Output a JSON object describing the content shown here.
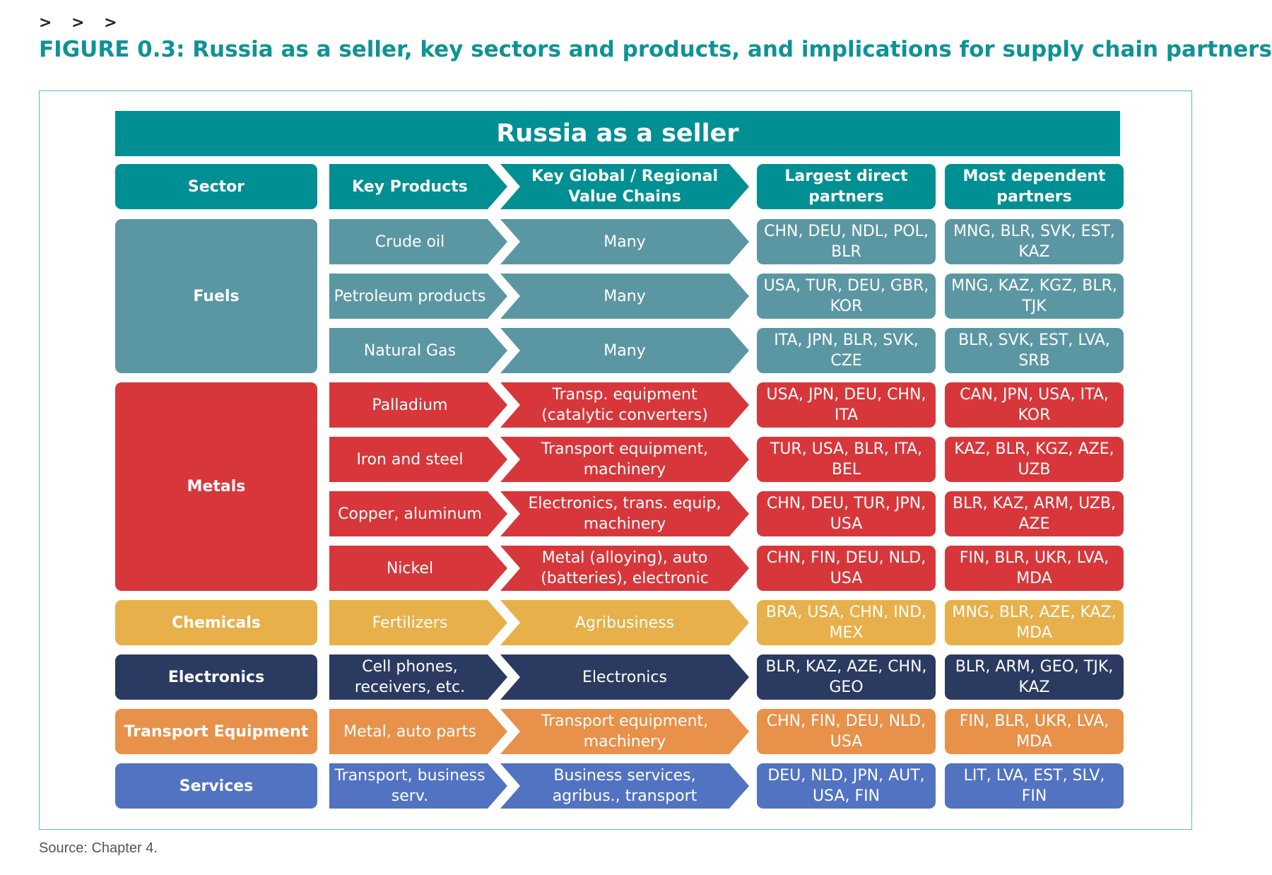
{
  "header": {
    "chevrons": "> > >",
    "title": "FIGURE 0.3: Russia as a seller, key sectors and products, and implications for supply chain partners"
  },
  "banner": "Russia as a seller",
  "columns": {
    "sector": "Sector",
    "products": "Key Products",
    "chains": "Key Global / Regional Value Chains",
    "direct": "Largest direct partners",
    "dependent": "Most dependent partners"
  },
  "colors": {
    "teal_header": "#008f93",
    "fuels": "#5b97a3",
    "metals": "#d7373b",
    "chemicals": "#e7b04a",
    "electronics": "#2b3a61",
    "transport": "#e8914a",
    "services": "#5173c2"
  },
  "sectors": [
    {
      "name": "Fuels",
      "color": "#5b97a3",
      "rows": [
        {
          "product": "Crude oil",
          "chain": "Many",
          "direct": "CHN, DEU, NDL, POL, BLR",
          "dependent": "MNG, BLR, SVK, EST, KAZ"
        },
        {
          "product": "Petroleum products",
          "chain": "Many",
          "direct": "USA, TUR, DEU, GBR, KOR",
          "dependent": "MNG, KAZ, KGZ, BLR, TJK"
        },
        {
          "product": "Natural Gas",
          "chain": "Many",
          "direct": "ITA, JPN, BLR, SVK, CZE",
          "dependent": "BLR, SVK, EST, LVA, SRB"
        }
      ]
    },
    {
      "name": "Metals",
      "color": "#d7373b",
      "rows": [
        {
          "product": "Palladium",
          "chain": "Transp. equipment (catalytic converters)",
          "direct": "USA, JPN, DEU, CHN, ITA",
          "dependent": "CAN, JPN, USA, ITA, KOR"
        },
        {
          "product": "Iron and steel",
          "chain": "Transport equipment, machinery",
          "direct": "TUR, USA, BLR, ITA, BEL",
          "dependent": "KAZ, BLR, KGZ, AZE, UZB"
        },
        {
          "product": "Copper, aluminum",
          "chain": "Electronics, trans. equip, machinery",
          "direct": "CHN, DEU, TUR, JPN, USA",
          "dependent": "BLR, KAZ, ARM, UZB, AZE"
        },
        {
          "product": "Nickel",
          "chain": "Metal (alloying), auto (batteries), electronic",
          "direct": "CHN, FIN, DEU, NLD, USA",
          "dependent": "FIN, BLR, UKR, LVA, MDA"
        }
      ]
    },
    {
      "name": "Chemicals",
      "color": "#e7b04a",
      "rows": [
        {
          "product": "Fertilizers",
          "chain": "Agribusiness",
          "direct": "BRA, USA, CHN, IND, MEX",
          "dependent": "MNG, BLR, AZE, KAZ, MDA"
        }
      ]
    },
    {
      "name": "Electronics",
      "color": "#2b3a61",
      "rows": [
        {
          "product": "Cell phones, receivers, etc.",
          "chain": "Electronics",
          "direct": "BLR, KAZ, AZE, CHN, GEO",
          "dependent": "BLR, ARM, GEO, TJK, KAZ"
        }
      ]
    },
    {
      "name": "Transport Equipment",
      "color": "#e8914a",
      "rows": [
        {
          "product": "Metal, auto parts",
          "chain": "Transport equipment, machinery",
          "direct": "CHN, FIN, DEU, NLD, USA",
          "dependent": "FIN, BLR, UKR, LVA, MDA"
        }
      ]
    },
    {
      "name": "Services",
      "color": "#5173c2",
      "rows": [
        {
          "product": "Transport, business serv.",
          "chain": "Business services, agribus., transport",
          "direct": "DEU, NLD, JPN, AUT, USA, FIN",
          "dependent": "LIT, LVA, EST, SLV, FIN"
        }
      ]
    }
  ],
  "source": "Source: Chapter 4."
}
